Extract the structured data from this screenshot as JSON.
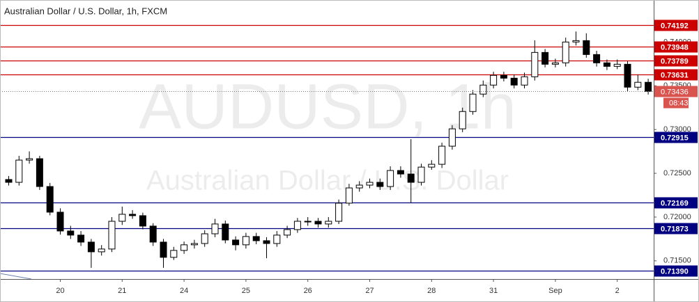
{
  "chart_data": {
    "type": "candlestick",
    "title": "Australian Dollar / U.S. Dollar, 1h, FXCM",
    "watermark": "AUDUSD, 1h",
    "watermark_subtitle": "Australian Dollar / U.S. Dollar",
    "categories": [
      null,
      null,
      null,
      null,
      null,
      "20",
      null,
      null,
      null,
      null,
      null,
      "21",
      null,
      null,
      null,
      null,
      null,
      "24",
      null,
      null,
      null,
      null,
      null,
      "25",
      null,
      null,
      null,
      null,
      null,
      "26",
      null,
      null,
      null,
      null,
      null,
      "27",
      null,
      null,
      null,
      null,
      null,
      "28",
      null,
      null,
      null,
      null,
      null,
      "31",
      null,
      null,
      null,
      null,
      null,
      "Sep",
      null,
      null,
      null,
      null,
      null,
      "2",
      null,
      null,
      null
    ],
    "open": [
      0.72429,
      0.72397,
      0.72651,
      0.72667,
      0.72349,
      0.72056,
      0.71841,
      0.71794,
      0.71714,
      0.71603,
      0.71635,
      0.71952,
      0.72032,
      0.72016,
      0.71897,
      0.71714,
      0.7154,
      0.71619,
      0.71683,
      0.71698,
      0.71809,
      0.71921,
      0.71738,
      0.71683,
      0.71778,
      0.7173,
      0.71698,
      0.71794,
      0.71857,
      0.71952,
      0.71952,
      0.71921,
      0.71952,
      0.72159,
      0.72333,
      0.72365,
      0.72397,
      0.72349,
      0.72532,
      0.72492,
      0.72397,
      0.72571,
      0.72603,
      0.7281,
      0.73008,
      0.73206,
      0.73405,
      0.73508,
      0.73619,
      0.73587,
      0.73508,
      0.73603,
      0.73881,
      0.73746,
      0.73762,
      0.74,
      0.74016,
      0.73857,
      0.73762,
      0.73722,
      0.73746,
      0.73484,
      0.7354
    ],
    "high": [
      0.7247,
      0.727,
      0.7275,
      0.727,
      0.7239,
      0.721,
      0.719,
      0.7184,
      0.7175,
      0.7168,
      0.72,
      0.7212,
      0.7208,
      0.7205,
      0.7193,
      0.7175,
      0.7166,
      0.7172,
      0.7174,
      0.7185,
      0.7198,
      0.7196,
      0.7178,
      0.7182,
      0.7182,
      0.7177,
      0.7184,
      0.719,
      0.7199,
      0.72,
      0.7199,
      0.72,
      0.722,
      0.7238,
      0.7241,
      0.7244,
      0.7244,
      0.7258,
      0.7258,
      0.7289,
      0.7261,
      0.7265,
      0.7285,
      0.7305,
      0.7325,
      0.7345,
      0.7356,
      0.7366,
      0.7366,
      0.7363,
      0.7365,
      0.7402,
      0.7392,
      0.7381,
      0.7405,
      0.7412,
      0.741,
      0.739,
      0.738,
      0.738,
      0.7378,
      0.7363,
      0.7358
    ],
    "low": [
      0.7236,
      0.7236,
      0.7261,
      0.7231,
      0.7202,
      0.718,
      0.7175,
      0.7167,
      0.7142,
      0.7156,
      0.716,
      0.7191,
      0.7198,
      0.7186,
      0.7167,
      0.7142,
      0.7151,
      0.7158,
      0.7164,
      0.7166,
      0.7177,
      0.717,
      0.7162,
      0.7164,
      0.7169,
      0.7153,
      0.7166,
      0.7176,
      0.7182,
      0.719,
      0.7188,
      0.7188,
      0.7192,
      0.7213,
      0.7229,
      0.7233,
      0.7231,
      0.7231,
      0.7245,
      0.7216,
      0.7236,
      0.7254,
      0.7256,
      0.7277,
      0.7297,
      0.7317,
      0.7337,
      0.7347,
      0.7355,
      0.7347,
      0.7347,
      0.7356,
      0.7371,
      0.7371,
      0.7372,
      0.7396,
      0.7382,
      0.7372,
      0.7368,
      0.7369,
      0.7344,
      0.7345,
      0.734
    ],
    "close": [
      0.72397,
      0.72651,
      0.72667,
      0.72349,
      0.72056,
      0.71841,
      0.71794,
      0.71714,
      0.71603,
      0.71635,
      0.71952,
      0.72032,
      0.72016,
      0.71897,
      0.71714,
      0.7154,
      0.71619,
      0.71683,
      0.71698,
      0.71809,
      0.71921,
      0.71738,
      0.71683,
      0.71778,
      0.7173,
      0.71698,
      0.71794,
      0.71857,
      0.71952,
      0.71952,
      0.71921,
      0.71952,
      0.72159,
      0.72333,
      0.72365,
      0.72397,
      0.72349,
      0.72532,
      0.72492,
      0.72397,
      0.72571,
      0.72603,
      0.7281,
      0.73008,
      0.73206,
      0.73405,
      0.73508,
      0.73619,
      0.73587,
      0.73508,
      0.73603,
      0.73881,
      0.73746,
      0.73762,
      0.74,
      0.74016,
      0.73857,
      0.73762,
      0.73722,
      0.73746,
      0.73484,
      0.7354,
      0.73436
    ],
    "up_color": "#ffffff",
    "down_color": "#000000",
    "ylim": [
      0.713,
      0.7448
    ],
    "yticks": [
      {
        "value": 0.74,
        "label": "0.74000"
      },
      {
        "value": 0.735,
        "label": "0.73500"
      },
      {
        "value": 0.73,
        "label": "0.73000"
      },
      {
        "value": 0.725,
        "label": "0.72500"
      },
      {
        "value": 0.72,
        "label": "0.72000"
      },
      {
        "value": 0.715,
        "label": "0.71500"
      }
    ],
    "levels": [
      {
        "value": 0.74192,
        "label": "0.74192",
        "color": "#cc0000"
      },
      {
        "value": 0.73948,
        "label": "0.73948",
        "color": "#cc0000"
      },
      {
        "value": 0.73789,
        "label": "0.73789",
        "color": "#cc0000"
      },
      {
        "value": 0.73631,
        "label": "0.73631",
        "color": "#cc0000"
      },
      {
        "value": 0.72915,
        "label": "0.72915",
        "color": "#000080"
      },
      {
        "value": 0.72169,
        "label": "0.72169",
        "color": "#000080"
      },
      {
        "value": 0.71873,
        "label": "0.71873",
        "color": "#000080"
      },
      {
        "value": 0.7139,
        "label": "0.71390",
        "color": "#000080"
      }
    ],
    "last": {
      "value": 0.73436,
      "label": "0.73436",
      "countdown": "08:43",
      "color": "#d9534f"
    }
  }
}
